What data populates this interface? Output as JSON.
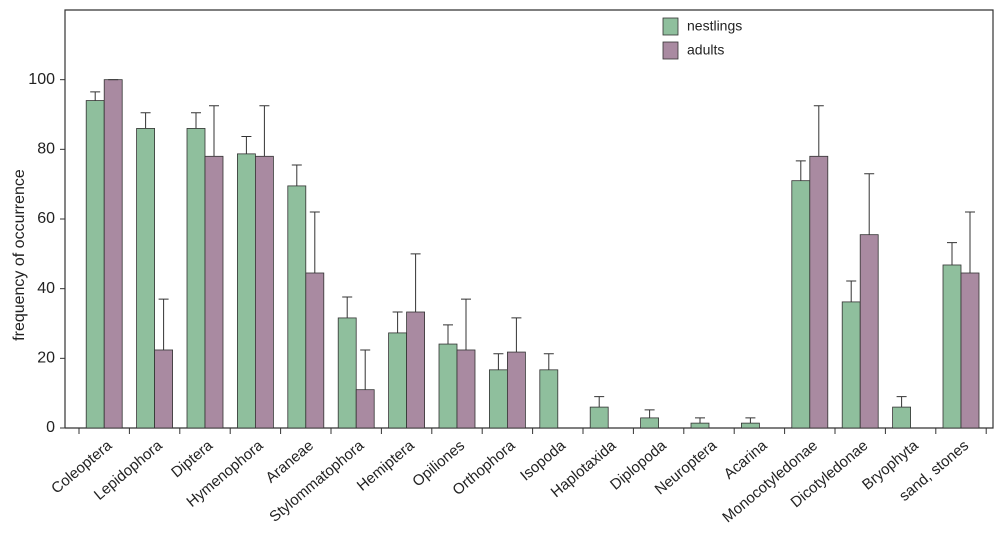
{
  "chart_data": {
    "type": "bar",
    "y_label": "frequency of occurrence",
    "categories": [
      "Coleoptera",
      "Lepidophora",
      "Diptera",
      "Hymenophora",
      "Araneae",
      "Stylommatophora",
      "Hemiptera",
      "Opiliones",
      "Orthophora",
      "Isopoda",
      "Haplotaxida",
      "Diplopoda",
      "Neuroptera",
      "Acarina",
      "Monocotyledonae",
      "Dicotyledonae",
      "Bryophyta",
      "sand, stones"
    ],
    "series": [
      {
        "name": "nestlings",
        "color": "#8fbf9d",
        "values": [
          94,
          86,
          86,
          78.7,
          69.5,
          31.6,
          27.3,
          24.1,
          16.7,
          16.7,
          6,
          2.9,
          1.4,
          1.4,
          71,
          36.2,
          6,
          46.8
        ],
        "errors": [
          2.5,
          4.5,
          4.5,
          5,
          6,
          6,
          6,
          5.5,
          4.6,
          4.6,
          3,
          2.3,
          1.5,
          1.5,
          5.7,
          6,
          3,
          6.4
        ]
      },
      {
        "name": "adults",
        "color": "#a98aa1",
        "values": [
          100,
          22.4,
          78,
          78,
          44.5,
          11,
          33.3,
          22.4,
          21.8,
          null,
          null,
          null,
          null,
          null,
          78,
          55.5,
          null,
          44.5
        ],
        "errors": [
          0,
          14.6,
          14.5,
          14.5,
          17.5,
          11.4,
          16.7,
          14.6,
          9.8,
          null,
          null,
          null,
          null,
          null,
          14.5,
          17.5,
          null,
          17.5
        ]
      }
    ],
    "ylim": [
      0,
      120
    ],
    "yticks": [
      0,
      20,
      40,
      60,
      80,
      100
    ],
    "legend": "top-right"
  }
}
